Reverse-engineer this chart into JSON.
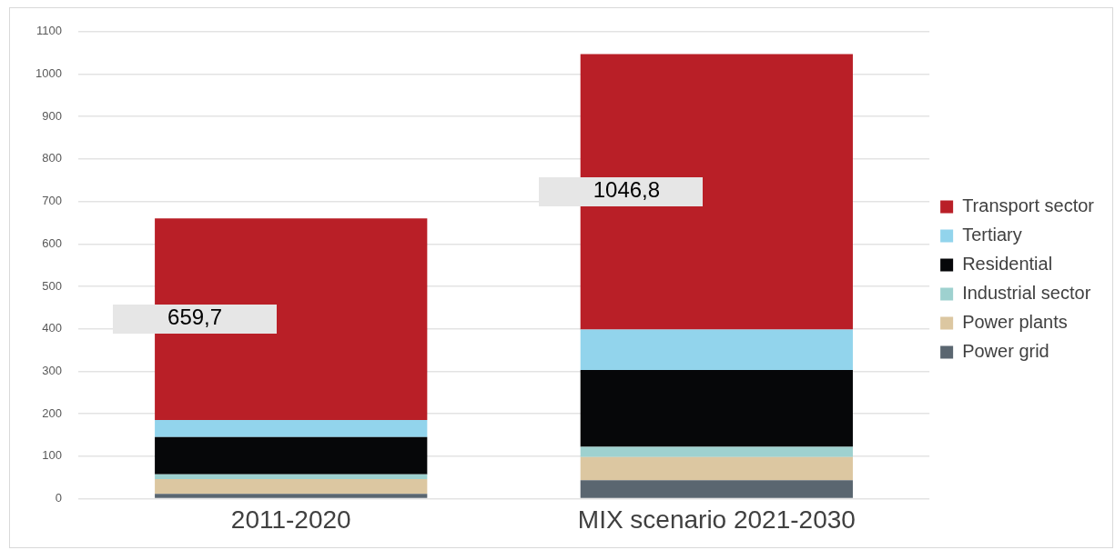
{
  "chart_data": {
    "type": "bar",
    "stacked": true,
    "categories": [
      "2011-2020",
      "MIX scenario 2021-2030"
    ],
    "series": [
      {
        "name": "Power grid",
        "color": "#5a6670",
        "values": [
          11,
          43
        ]
      },
      {
        "name": "Power plants",
        "color": "#dcc7a1",
        "values": [
          35,
          55
        ]
      },
      {
        "name": "Industrial sector",
        "color": "#9ed1cf",
        "values": [
          11,
          24
        ]
      },
      {
        "name": "Residential",
        "color": "#060709",
        "values": [
          88,
          181
        ]
      },
      {
        "name": "Tertiary",
        "color": "#92d4ec",
        "values": [
          40,
          95
        ]
      },
      {
        "name": "Transport sector",
        "color": "#b91f27",
        "values": [
          475,
          649
        ]
      }
    ],
    "totals": [
      "659,7",
      "1046,8"
    ],
    "ylim": [
      0,
      1100
    ],
    "yticks": [
      0,
      100,
      200,
      300,
      400,
      500,
      600,
      700,
      800,
      900,
      1000,
      1100
    ],
    "grid": "y",
    "legend": "right"
  }
}
